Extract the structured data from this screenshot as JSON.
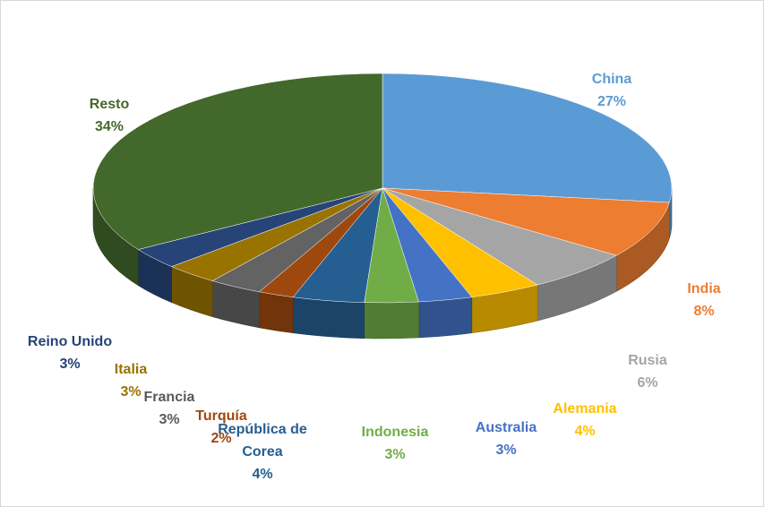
{
  "chart_data": {
    "type": "pie",
    "title": "",
    "slices": [
      {
        "name": "China",
        "value": 27,
        "value_label": "27%",
        "color": "#5b9bd5"
      },
      {
        "name": "India",
        "value": 8,
        "value_label": "8%",
        "color": "#ed7d31"
      },
      {
        "name": "Rusia",
        "value": 6,
        "value_label": "6%",
        "color": "#a5a5a5"
      },
      {
        "name": "Alemania",
        "value": 4,
        "value_label": "4%",
        "color": "#ffc000"
      },
      {
        "name": "Australia",
        "value": 3,
        "value_label": "3%",
        "color": "#4472c4"
      },
      {
        "name": "Indonesia",
        "value": 3,
        "value_label": "3%",
        "color": "#70ad47"
      },
      {
        "name": "República de Corea",
        "value": 4,
        "value_label": "4%",
        "color": "#255e91"
      },
      {
        "name": "Turquía",
        "value": 2,
        "value_label": "2%",
        "color": "#9e480e"
      },
      {
        "name": "Francia",
        "value": 3,
        "value_label": "3%",
        "color": "#636363"
      },
      {
        "name": "Italia",
        "value": 3,
        "value_label": "3%",
        "color": "#997300"
      },
      {
        "name": "Reino Unido",
        "value": 3,
        "value_label": "3%",
        "color": "#264478"
      },
      {
        "name": "Resto",
        "value": 34,
        "value_label": "34%",
        "color": "#43682b"
      }
    ],
    "label_colors": [
      "#5b9bd5",
      "#ed7d31",
      "#a5a5a5",
      "#ffc000",
      "#4472c4",
      "#70ad47",
      "#255e91",
      "#9e480e",
      "#595959",
      "#997300",
      "#264478",
      "#43682b"
    ],
    "start_angle": "12 o'clock",
    "direction": "clockwise",
    "style": "3d-pie",
    "legend": "none"
  }
}
